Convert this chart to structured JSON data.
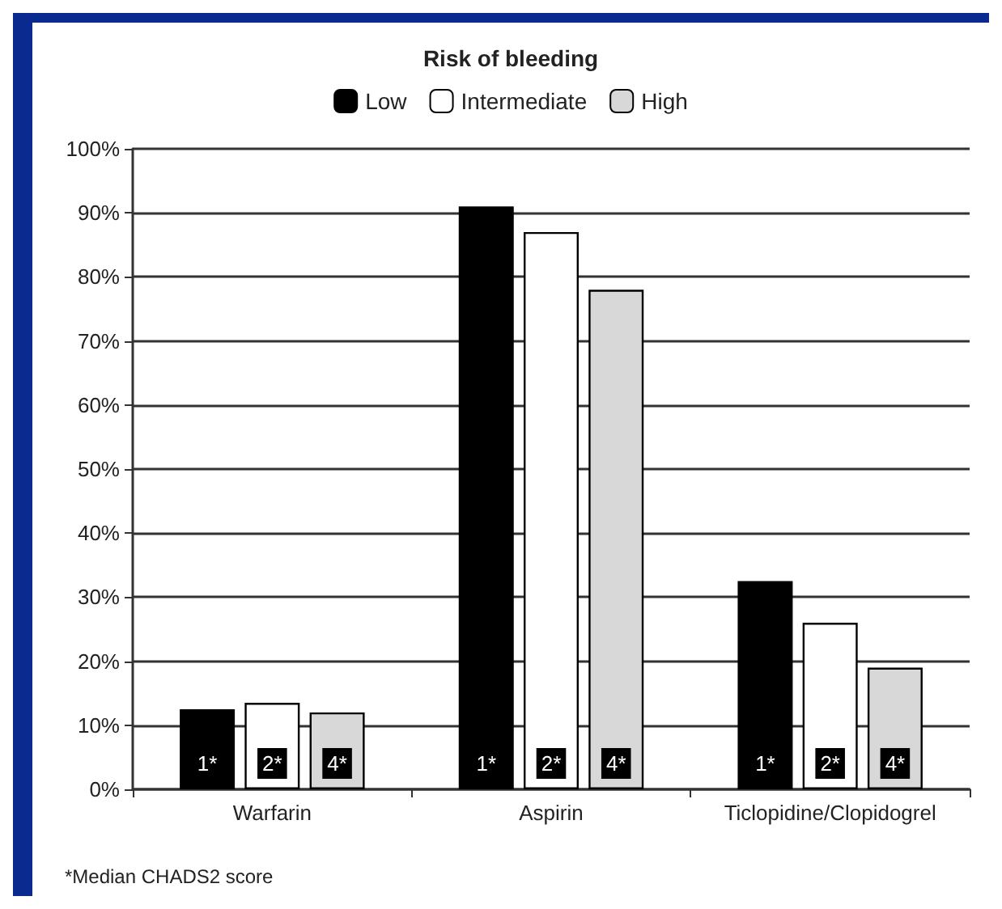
{
  "chart_data": {
    "type": "bar",
    "legend_title": "Risk of bleeding",
    "categories": [
      "Warfarin",
      "Aspirin",
      "Ticlopidine/Clopidogrel"
    ],
    "series": [
      {
        "name": "Low",
        "color": "#000000",
        "values": [
          12.5,
          91,
          32.5
        ]
      },
      {
        "name": "Intermediate",
        "color": "#ffffff",
        "values": [
          13.5,
          87,
          26
        ]
      },
      {
        "name": "High",
        "color": "#d8d8d8",
        "values": [
          12,
          78,
          19
        ]
      }
    ],
    "ylim": [
      0,
      100
    ],
    "yticks": [
      {
        "value": 0,
        "label": "0%"
      },
      {
        "value": 10,
        "label": "10%"
      },
      {
        "value": 20,
        "label": "20%"
      },
      {
        "value": 30,
        "label": "30%"
      },
      {
        "value": 40,
        "label": "40%"
      },
      {
        "value": 50,
        "label": "50%"
      },
      {
        "value": 60,
        "label": "60%"
      },
      {
        "value": 70,
        "label": "70%"
      },
      {
        "value": 80,
        "label": "80%"
      },
      {
        "value": 90,
        "label": "90%"
      },
      {
        "value": 100,
        "label": "100%"
      }
    ],
    "grid": "y",
    "legend": "top",
    "annotations": [
      "*Median CHADS2 score",
      "1*",
      "2*",
      "4*",
      "1*",
      "2*",
      "4*",
      "1*",
      "2*",
      "4*"
    ]
  }
}
